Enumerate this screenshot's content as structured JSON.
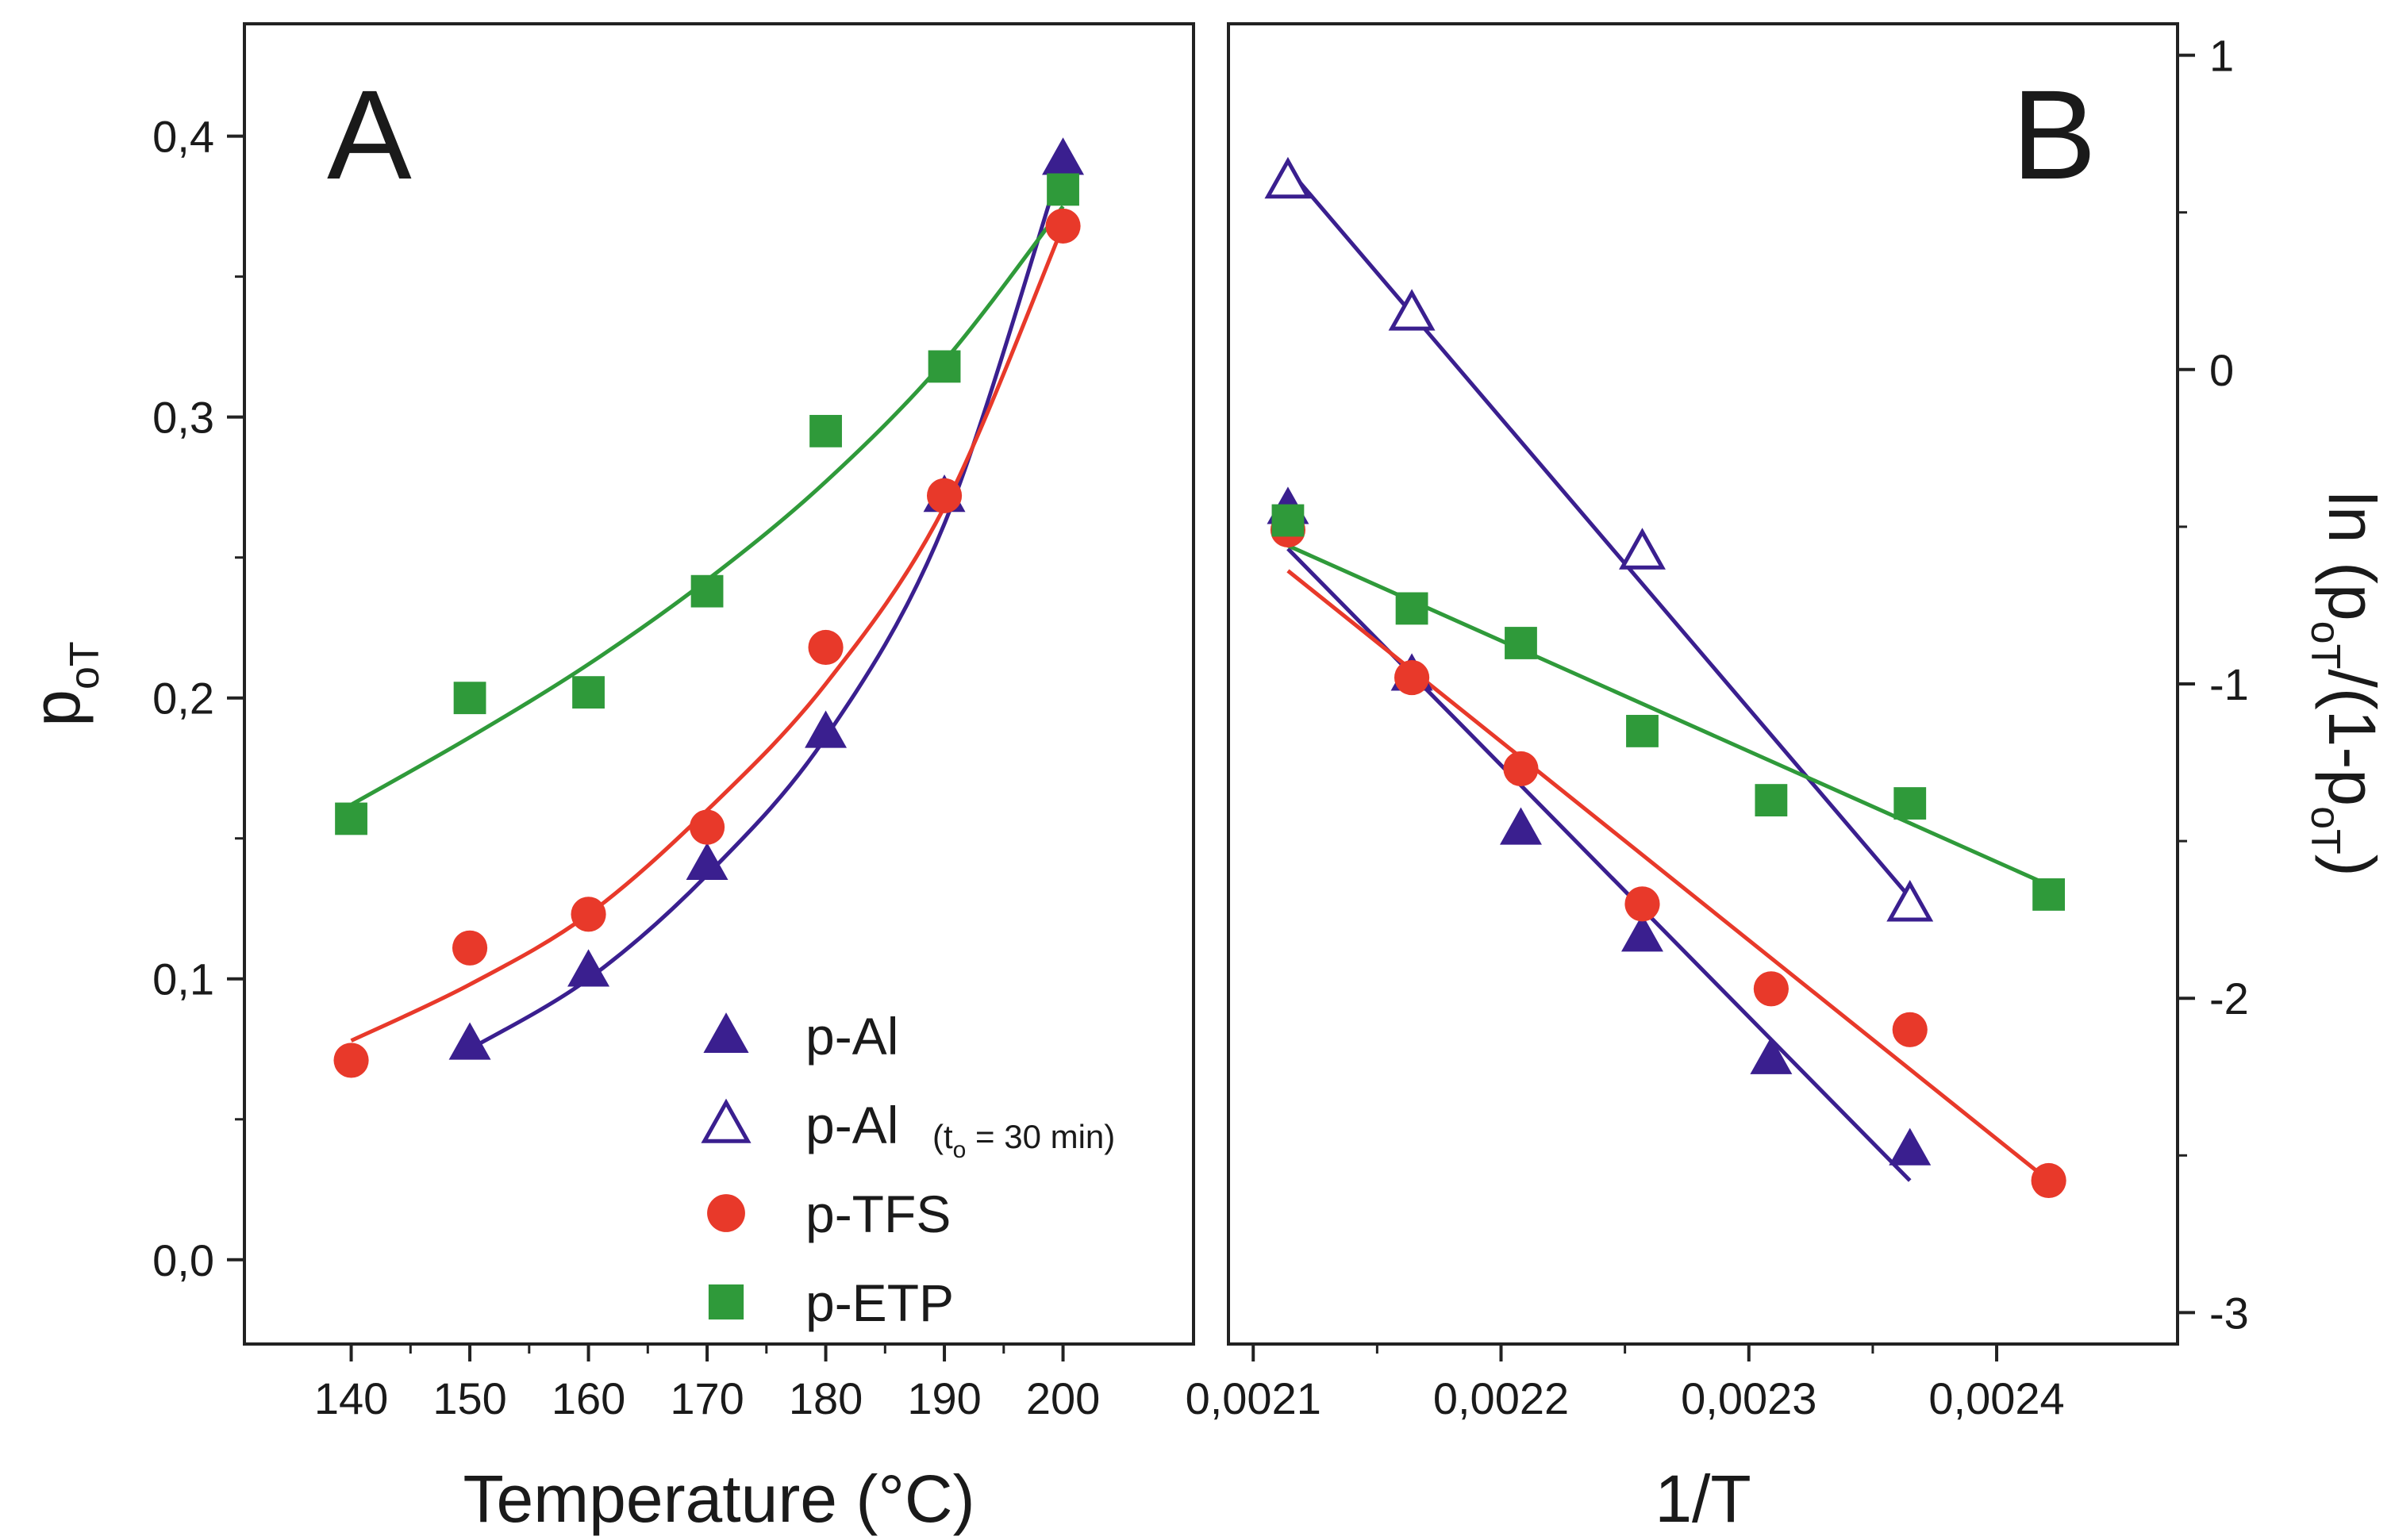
{
  "chart_data": [
    {
      "panel": "A",
      "type": "scatter",
      "panel_label": "A",
      "xlabel": "Temperature (°C)",
      "ylabel": {
        "main": "p",
        "sub": "oT"
      },
      "xlim": [
        131,
        211
      ],
      "ylim": [
        -0.03,
        0.44
      ],
      "xticks": [
        140,
        150,
        160,
        170,
        180,
        190,
        200
      ],
      "xtick_labels": [
        "140",
        "150",
        "160",
        "170",
        "180",
        "190",
        "200"
      ],
      "yticks": [
        0.0,
        0.1,
        0.2,
        0.3,
        0.4
      ],
      "ytick_labels": [
        "0,0",
        "0,1",
        "0,2",
        "0,3",
        "0,4"
      ],
      "grid": false,
      "legend_position": "bottom-right",
      "series": [
        {
          "name": "p-Al",
          "color": "#3a1f8f",
          "marker": "triangle-filled",
          "x": [
            150,
            160,
            170,
            180,
            190,
            200
          ],
          "y": [
            0.077,
            0.103,
            0.141,
            0.188,
            0.272,
            0.392
          ],
          "fit_x": [
            150,
            160,
            170,
            180,
            190,
            200
          ],
          "fit_y": [
            0.075,
            0.1,
            0.137,
            0.186,
            0.262,
            0.392
          ]
        },
        {
          "name": "p-TFS",
          "color": "#e8392a",
          "marker": "circle-filled",
          "x": [
            140,
            150,
            160,
            170,
            180,
            190,
            200
          ],
          "y": [
            0.071,
            0.111,
            0.123,
            0.154,
            0.218,
            0.272,
            0.368
          ],
          "fit_x": [
            140,
            150,
            160,
            170,
            180,
            190,
            200
          ],
          "fit_y": [
            0.078,
            0.098,
            0.123,
            0.16,
            0.205,
            0.268,
            0.368
          ]
        },
        {
          "name": "p-ETP",
          "color": "#2f9a3a",
          "marker": "square-filled",
          "x": [
            140,
            150,
            160,
            170,
            180,
            190,
            200
          ],
          "y": [
            0.157,
            0.2,
            0.202,
            0.238,
            0.295,
            0.318,
            0.381
          ],
          "fit_x": [
            140,
            150,
            160,
            170,
            180,
            190,
            200
          ],
          "fit_y": [
            0.162,
            0.186,
            0.212,
            0.242,
            0.277,
            0.32,
            0.375
          ]
        }
      ]
    },
    {
      "panel": "B",
      "type": "scatter",
      "panel_label": "B",
      "xlabel": "1/T",
      "ylabel": {
        "main": "ln (p",
        "sub1": "oT",
        "mid": "/(1-p",
        "sub2": "oT",
        "end": ")"
      },
      "xlim": [
        0.00209,
        0.002473
      ],
      "ylim": [
        -3.1,
        1.1
      ],
      "xticks": [
        0.0021,
        0.0022,
        0.0023,
        0.0024
      ],
      "xtick_labels": [
        "0,0021",
        "0,0022",
        "0,0023",
        "0,0024"
      ],
      "yticks": [
        1,
        0,
        -1,
        -2,
        -3
      ],
      "ytick_labels": [
        "1",
        "0",
        "-1",
        "-2",
        "-3"
      ],
      "y_axis_side": "right",
      "grid": false,
      "series": [
        {
          "name": "p-Al",
          "color": "#3a1f8f",
          "marker": "triangle-filled",
          "x": [
            0.002114,
            0.002164,
            0.002208,
            0.002257,
            0.002309,
            0.002365
          ],
          "y": [
            -0.44,
            -0.97,
            -1.46,
            -1.8,
            -2.19,
            -2.48
          ],
          "fit_x": [
            0.002114,
            0.002365
          ],
          "fit_y": [
            -0.57,
            -2.58
          ]
        },
        {
          "name": "p-Al (to = 30 min)",
          "color": "#3a1f8f",
          "marker": "triangle-open",
          "x": [
            0.002114,
            0.002164,
            0.002257,
            0.002365
          ],
          "y": [
            0.6,
            0.18,
            -0.58,
            -1.7
          ],
          "fit_x": [
            0.002114,
            0.002365
          ],
          "fit_y": [
            0.64,
            -1.68
          ]
        },
        {
          "name": "p-TFS",
          "color": "#e8392a",
          "marker": "circle-filled",
          "x": [
            0.002114,
            0.002164,
            0.002208,
            0.002257,
            0.002309,
            0.002365,
            0.002421
          ],
          "y": [
            -0.51,
            -0.98,
            -1.27,
            -1.7,
            -1.97,
            -2.1,
            -2.58
          ],
          "fit_x": [
            0.002114,
            0.002421
          ],
          "fit_y": [
            -0.64,
            -2.58
          ]
        },
        {
          "name": "p-ETP",
          "color": "#2f9a3a",
          "marker": "square-filled",
          "x": [
            0.002114,
            0.002164,
            0.002208,
            0.002257,
            0.002309,
            0.002365,
            0.002421
          ],
          "y": [
            -0.48,
            -0.76,
            -0.87,
            -1.15,
            -1.37,
            -1.38,
            -1.67
          ],
          "fit_x": [
            0.002114,
            0.002421
          ],
          "fit_y": [
            -0.56,
            -1.64
          ]
        }
      ]
    }
  ],
  "legend": {
    "items": [
      {
        "series": "p-Al",
        "label": "p-Al",
        "marker": "triangle-filled",
        "color": "#3a1f8f"
      },
      {
        "series": "p-Al open",
        "label": "p-Al",
        "note_open": "(t",
        "note_sub": "o",
        "note_close": " = 30 min)",
        "marker": "triangle-open",
        "color": "#3a1f8f"
      },
      {
        "series": "p-TFS",
        "label": "p-TFS",
        "marker": "circle-filled",
        "color": "#e8392a"
      },
      {
        "series": "p-ETP",
        "label": "p-ETP",
        "marker": "square-filled",
        "color": "#2f9a3a"
      }
    ]
  }
}
